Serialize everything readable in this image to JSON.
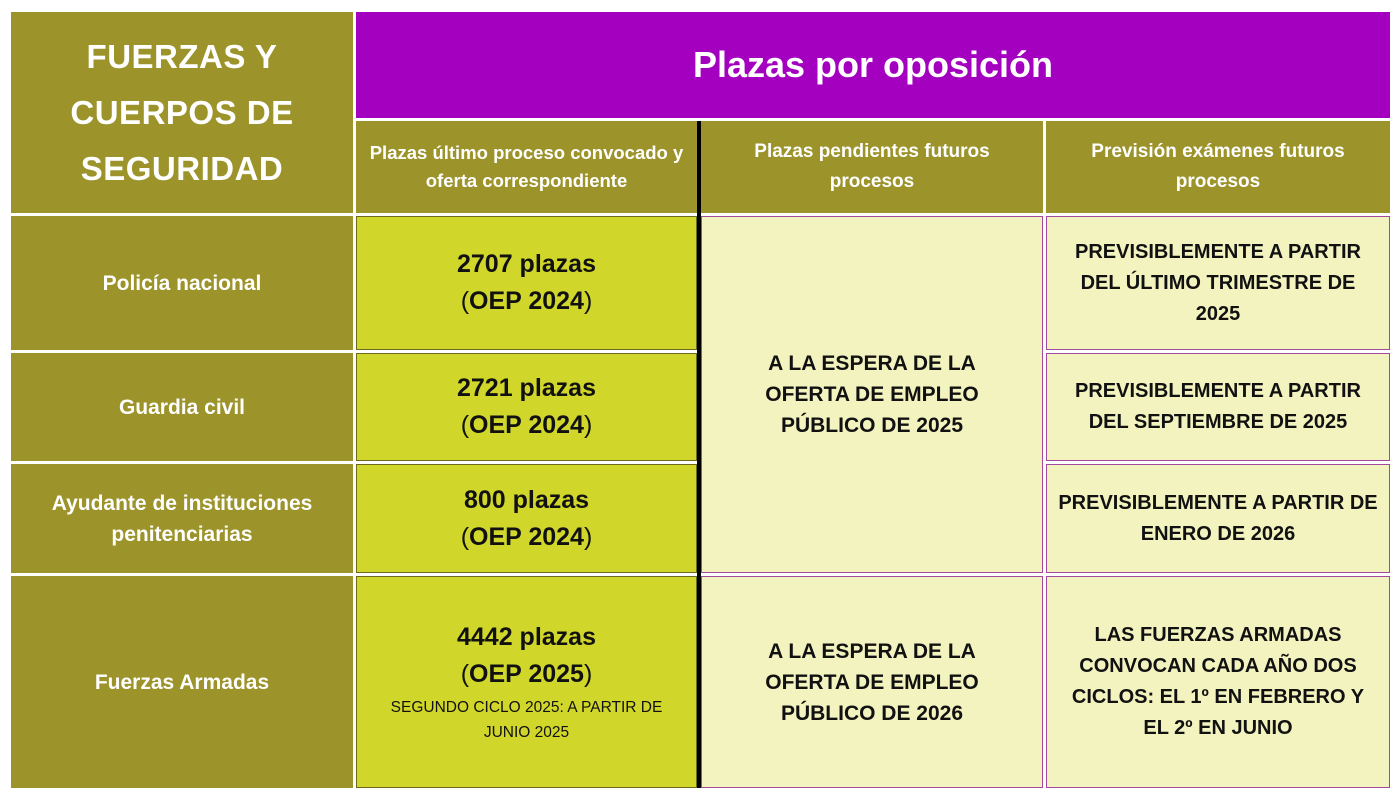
{
  "header": {
    "corner_title_lines": [
      "FUERZAS Y",
      "CUERPOS DE",
      "SEGURIDAD"
    ],
    "top_title": "Plazas por oposición",
    "columns": [
      "Plazas último proceso convocado y oferta correspondiente",
      "Plazas pendientes futuros procesos",
      "Previsión exámenes futuros procesos"
    ]
  },
  "rows": [
    {
      "label": "Policía nacional",
      "plazas": "2707 plazas",
      "oep": "OEP 2024",
      "prevision": "PREVISIBLEMENTE A PARTIR DEL ÚLTIMO TRIMESTRE DE 2025"
    },
    {
      "label": "Guardia civil",
      "plazas": "2721 plazas",
      "oep": "OEP 2024",
      "prevision": "PREVISIBLEMENTE A PARTIR DEL SEPTIEMBRE DE 2025"
    },
    {
      "label": "Ayudante de instituciones penitenciarias",
      "plazas": "800 plazas",
      "oep": "OEP 2024",
      "prevision": "PREVISIBLEMENTE A PARTIR DE ENERO DE 2026"
    },
    {
      "label": "Fuerzas Armadas",
      "plazas": "4442 plazas",
      "oep": "OEP 2025",
      "extra": "SEGUNDO CICLO 2025: A PARTIR DE JUNIO 2025",
      "prevision": "LAS FUERZAS ARMADAS CONVOCAN CADA AÑO DOS CICLOS: EL 1º EN FEBRERO Y EL 2º EN JUNIO"
    }
  ],
  "pendientes": {
    "group_1_3": "A LA ESPERA DE LA OFERTA DE EMPLEO PÚBLICO DE 2025",
    "row_4": "A LA ESPERA DE LA OFERTA DE EMPLEO PÚBLICO DE 2026"
  },
  "colors": {
    "olive": "#9c932a",
    "purple": "#a400c0",
    "lime": "#d1d72a",
    "cream": "#f3f3c0",
    "border": "#a34aa0"
  }
}
